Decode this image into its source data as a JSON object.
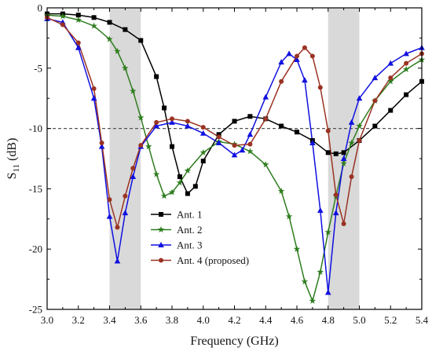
{
  "chart_data": {
    "type": "line",
    "xlabel": "Frequency (GHz)",
    "ylabel_main": "S",
    "ylabel_sub": "11",
    "ylabel_unit": " (dB)",
    "xlim": [
      3.0,
      5.4
    ],
    "ylim": [
      -25,
      0
    ],
    "xticks": [
      3.0,
      3.2,
      3.4,
      3.6,
      3.8,
      4.0,
      4.2,
      4.4,
      4.6,
      4.8,
      5.0,
      5.2,
      5.4
    ],
    "xtick_labels": [
      "3.0",
      "3.2",
      "3.4",
      "3.6",
      "3.8",
      "4.0",
      "4.2",
      "4.4",
      "4.6",
      "4.8",
      "5.0",
      "5.2",
      "5.4"
    ],
    "yticks": [
      0,
      -5,
      -10,
      -15,
      -20,
      -25
    ],
    "ytick_labels": [
      "0",
      "-5",
      "-10",
      "-15",
      "-20",
      "-25"
    ],
    "reference_line": -10,
    "shaded_bands": [
      [
        3.4,
        3.6
      ],
      [
        4.8,
        5.0
      ]
    ],
    "legend_position": "lower-center",
    "series": [
      {
        "name": "Ant. 1",
        "color": "#000000",
        "marker": "square",
        "x": [
          3.0,
          3.1,
          3.2,
          3.3,
          3.4,
          3.5,
          3.6,
          3.7,
          3.75,
          3.8,
          3.85,
          3.9,
          3.95,
          4.0,
          4.1,
          4.2,
          4.3,
          4.4,
          4.5,
          4.6,
          4.7,
          4.8,
          4.85,
          4.9,
          5.0,
          5.1,
          5.2,
          5.3,
          5.4
        ],
        "y": [
          -0.5,
          -0.5,
          -0.6,
          -0.8,
          -1.2,
          -1.8,
          -2.7,
          -5.7,
          -8.3,
          -11.5,
          -14.0,
          -15.4,
          -14.8,
          -12.7,
          -10.5,
          -9.4,
          -9.0,
          -9.2,
          -9.8,
          -10.3,
          -11.0,
          -12.0,
          -12.1,
          -12.0,
          -11.0,
          -9.8,
          -8.5,
          -7.2,
          -6.1
        ]
      },
      {
        "name": "Ant. 2",
        "color": "#2e7d1e",
        "marker": "star",
        "x": [
          3.0,
          3.1,
          3.2,
          3.3,
          3.4,
          3.45,
          3.5,
          3.55,
          3.6,
          3.65,
          3.7,
          3.75,
          3.8,
          3.85,
          3.9,
          4.0,
          4.1,
          4.2,
          4.3,
          4.4,
          4.5,
          4.55,
          4.6,
          4.65,
          4.7,
          4.75,
          4.8,
          4.85,
          4.9,
          4.95,
          5.0,
          5.1,
          5.2,
          5.3,
          5.4
        ],
        "y": [
          -0.6,
          -0.7,
          -1.0,
          -1.5,
          -2.6,
          -3.6,
          -5.0,
          -6.9,
          -9.1,
          -11.5,
          -13.8,
          -15.6,
          -15.3,
          -14.5,
          -13.5,
          -12.0,
          -11.1,
          -11.3,
          -11.9,
          -13.0,
          -15.2,
          -17.3,
          -20.0,
          -22.7,
          -24.3,
          -21.9,
          -18.6,
          -15.6,
          -12.9,
          -11.2,
          -9.8,
          -7.7,
          -6.1,
          -5.1,
          -4.3
        ]
      },
      {
        "name": "Ant. 3",
        "color": "#1010e0",
        "marker": "triangle",
        "x": [
          3.0,
          3.1,
          3.2,
          3.3,
          3.35,
          3.4,
          3.45,
          3.5,
          3.55,
          3.6,
          3.7,
          3.8,
          3.9,
          4.0,
          4.1,
          4.2,
          4.25,
          4.3,
          4.4,
          4.5,
          4.55,
          4.6,
          4.65,
          4.7,
          4.75,
          4.8,
          4.85,
          4.9,
          4.95,
          5.0,
          5.1,
          5.2,
          5.3,
          5.4
        ],
        "y": [
          -0.9,
          -1.2,
          -3.3,
          -7.5,
          -11.5,
          -17.3,
          -21.0,
          -17.0,
          -14.0,
          -11.5,
          -9.8,
          -9.5,
          -9.8,
          -10.4,
          -11.2,
          -12.2,
          -11.8,
          -10.5,
          -7.4,
          -4.5,
          -3.8,
          -4.3,
          -6.0,
          -11.2,
          -16.8,
          -23.6,
          -17.0,
          -12.5,
          -9.5,
          -7.5,
          -5.8,
          -4.6,
          -3.8,
          -3.3
        ]
      },
      {
        "name": "Ant. 4 (proposed)",
        "color": "#9a3323",
        "marker": "circle",
        "x": [
          3.0,
          3.1,
          3.2,
          3.3,
          3.35,
          3.4,
          3.45,
          3.5,
          3.55,
          3.6,
          3.7,
          3.8,
          3.9,
          4.0,
          4.1,
          4.2,
          4.3,
          4.4,
          4.5,
          4.6,
          4.65,
          4.7,
          4.75,
          4.8,
          4.85,
          4.9,
          4.95,
          5.0,
          5.1,
          5.2,
          5.3,
          5.4
        ],
        "y": [
          -0.8,
          -1.4,
          -2.9,
          -6.7,
          -11.2,
          -15.9,
          -18.2,
          -15.6,
          -13.3,
          -11.4,
          -9.5,
          -9.2,
          -9.4,
          -9.9,
          -10.7,
          -11.4,
          -11.3,
          -9.2,
          -6.1,
          -4.0,
          -3.3,
          -4.0,
          -6.6,
          -10.2,
          -15.5,
          -17.9,
          -14.0,
          -11.0,
          -7.7,
          -5.8,
          -4.6,
          -3.8
        ]
      }
    ]
  }
}
